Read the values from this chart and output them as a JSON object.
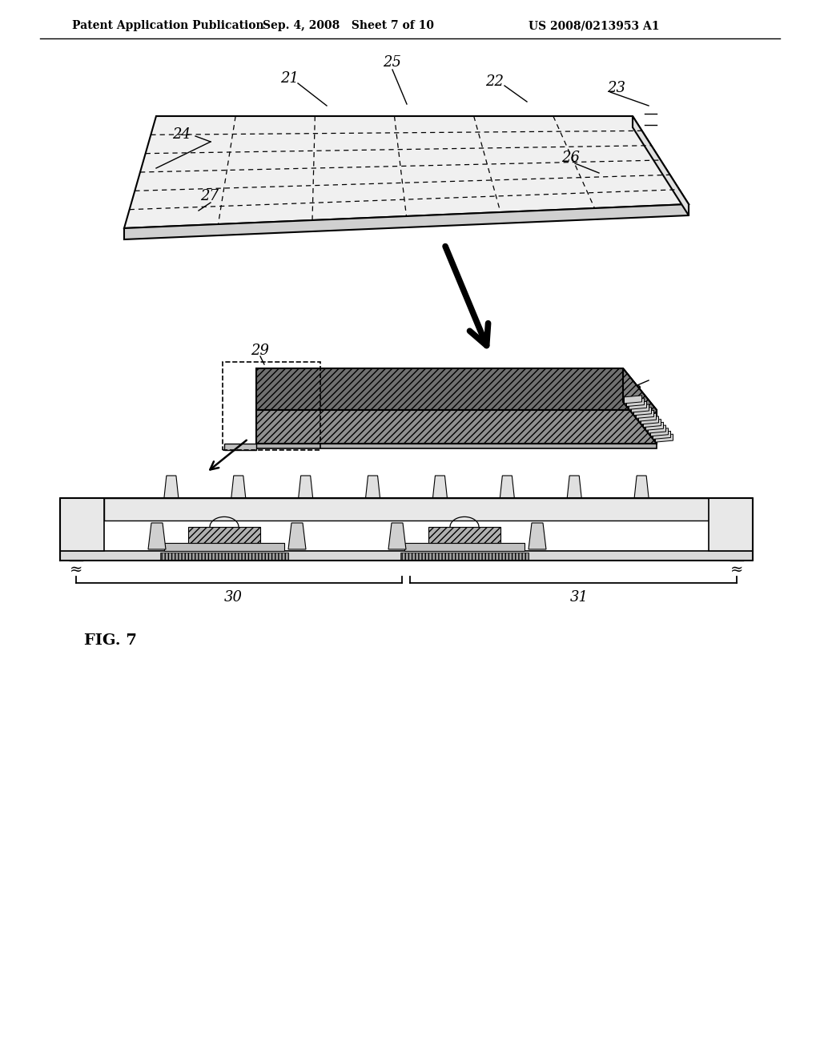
{
  "bg": "#ffffff",
  "lc": "#000000",
  "header_left": "Patent Application Publication",
  "header_mid": "Sep. 4, 2008   Sheet 7 of 10",
  "header_right": "US 2008/0213953 A1",
  "fig_label": "FIG. 7"
}
